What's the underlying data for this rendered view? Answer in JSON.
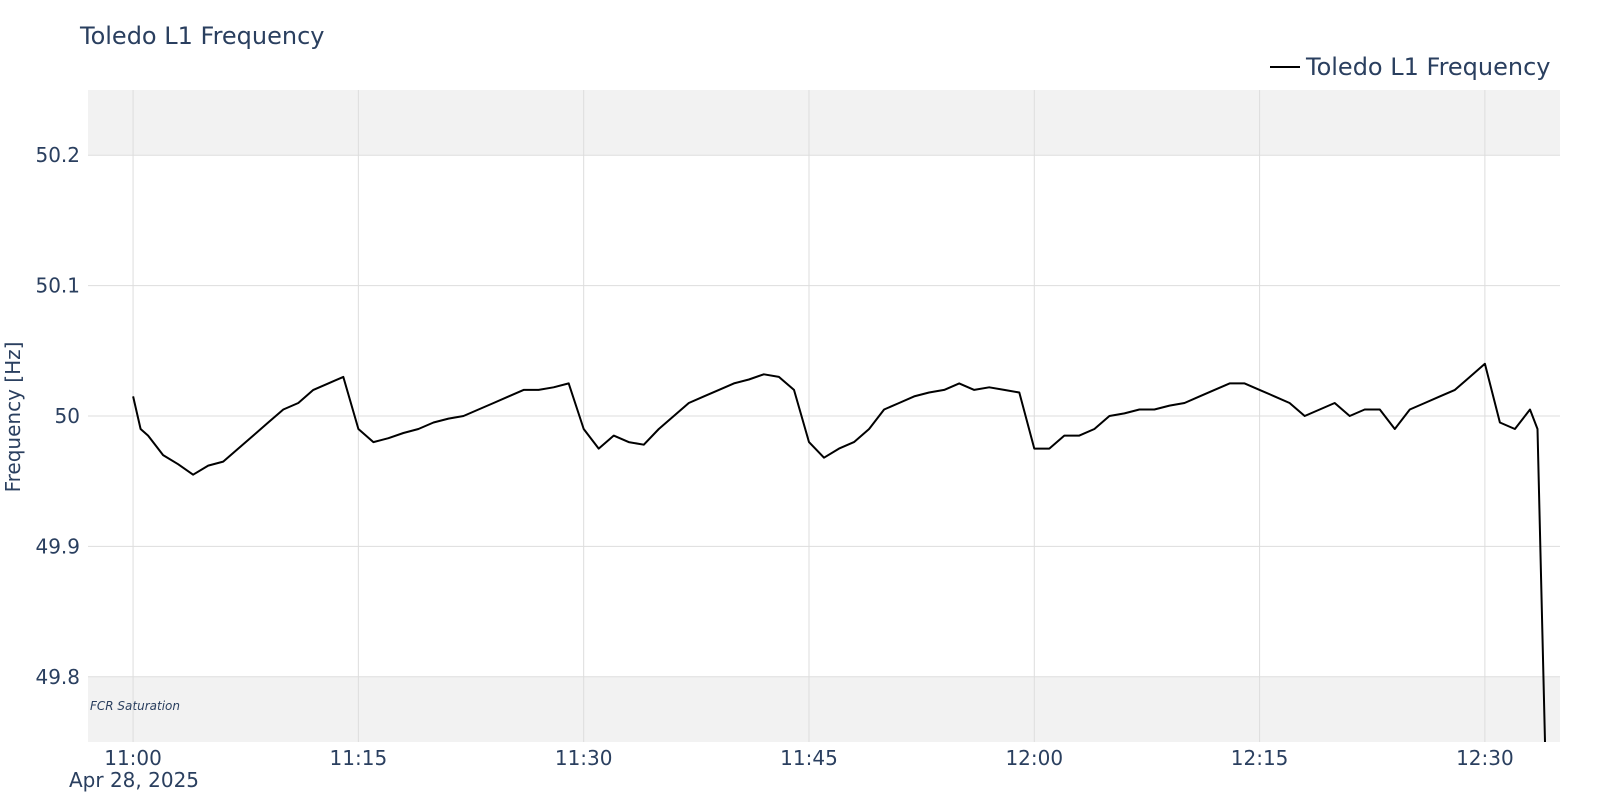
{
  "chart_data": {
    "type": "line",
    "title": "Toledo L1 Frequency",
    "xlabel": "",
    "ylabel": "Frequency [Hz]",
    "x_range": [
      "10:57",
      "12:35"
    ],
    "ylim": [
      49.75,
      50.25
    ],
    "x_tick_labels": [
      "11:00",
      "11:15",
      "11:30",
      "11:45",
      "12:00",
      "12:15",
      "12:30"
    ],
    "x_tick_date": "Apr 28, 2025",
    "y_ticks": [
      49.8,
      49.9,
      50,
      50.1,
      50.2
    ],
    "y_tick_labels": [
      "49.8",
      "49.9",
      "50",
      "50.1",
      "50.2"
    ],
    "grid": true,
    "legend_position": "top-right",
    "bands": [
      {
        "from": 50.2,
        "to": 50.25,
        "color": "#f2f2f2",
        "label": ""
      },
      {
        "from": 49.75,
        "to": 49.8,
        "color": "#f2f2f2",
        "label": "FCR Saturation"
      }
    ],
    "series": [
      {
        "name": "Toledo L1 Frequency",
        "color": "#000000",
        "x": [
          "11:00",
          "11:00:30",
          "11:01",
          "11:02",
          "11:03",
          "11:04",
          "11:05",
          "11:06",
          "11:07",
          "11:08",
          "11:09",
          "11:10",
          "11:11",
          "11:12",
          "11:13",
          "11:14",
          "11:15",
          "11:16",
          "11:17",
          "11:18",
          "11:19",
          "11:20",
          "11:21",
          "11:22",
          "11:23",
          "11:24",
          "11:25",
          "11:26",
          "11:27",
          "11:28",
          "11:29",
          "11:30",
          "11:31",
          "11:32",
          "11:33",
          "11:34",
          "11:35",
          "11:36",
          "11:37",
          "11:38",
          "11:39",
          "11:40",
          "11:41",
          "11:42",
          "11:43",
          "11:44",
          "11:45",
          "11:46",
          "11:47",
          "11:48",
          "11:49",
          "11:50",
          "11:51",
          "11:52",
          "11:53",
          "11:54",
          "11:55",
          "11:56",
          "11:57",
          "11:58",
          "11:59",
          "12:00",
          "12:01",
          "12:02",
          "12:03",
          "12:04",
          "12:05",
          "12:06",
          "12:07",
          "12:08",
          "12:09",
          "12:10",
          "12:11",
          "12:12",
          "12:13",
          "12:14",
          "12:15",
          "12:16",
          "12:17",
          "12:18",
          "12:19",
          "12:20",
          "12:21",
          "12:22",
          "12:23",
          "12:24",
          "12:25",
          "12:26",
          "12:27",
          "12:28",
          "12:29",
          "12:30",
          "12:31",
          "12:32",
          "12:33",
          "12:33:30",
          "12:34"
        ],
        "y": [
          50.015,
          49.99,
          49.985,
          49.97,
          49.963,
          49.955,
          49.962,
          49.965,
          49.975,
          49.985,
          49.995,
          50.005,
          50.01,
          50.02,
          50.025,
          50.03,
          49.99,
          49.98,
          49.983,
          49.987,
          49.99,
          49.995,
          49.998,
          50.0,
          50.005,
          50.01,
          50.015,
          50.02,
          50.02,
          50.022,
          50.025,
          49.99,
          49.975,
          49.985,
          49.98,
          49.978,
          49.99,
          50.0,
          50.01,
          50.015,
          50.02,
          50.025,
          50.028,
          50.032,
          50.03,
          50.02,
          49.98,
          49.968,
          49.975,
          49.98,
          49.99,
          50.005,
          50.01,
          50.015,
          50.018,
          50.02,
          50.025,
          50.02,
          50.022,
          50.02,
          50.018,
          49.975,
          49.975,
          49.985,
          49.985,
          49.99,
          50.0,
          50.002,
          50.005,
          50.005,
          50.008,
          50.01,
          50.015,
          50.02,
          50.025,
          50.025,
          50.02,
          50.015,
          50.01,
          50.0,
          50.005,
          50.01,
          50.0,
          50.005,
          50.005,
          49.99,
          50.005,
          50.01,
          50.015,
          50.02,
          50.03,
          50.04,
          49.995,
          49.99,
          50.005,
          49.99,
          49.75
        ]
      }
    ]
  }
}
